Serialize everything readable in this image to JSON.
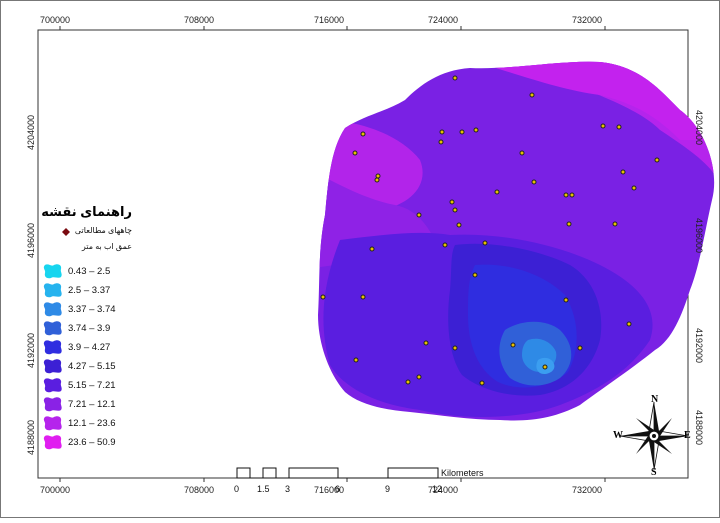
{
  "x_ticks": [
    "700000",
    "708000",
    "716000",
    "724000",
    "732000"
  ],
  "y_ticks": [
    "4204000",
    "4196000",
    "4192000",
    "4188000"
  ],
  "legend": {
    "title": "راهنمای نقشه",
    "wells_label": "چاههای مطالعاتی",
    "depth_label": "عمق اب به متر",
    "classes": [
      {
        "range": "0.43 – 2.5",
        "color": "#17d5ef"
      },
      {
        "range": "2.5 – 3.37",
        "color": "#26b3ee"
      },
      {
        "range": "3.37 – 3.74",
        "color": "#2e8ae6"
      },
      {
        "range": "3.74 – 3.9",
        "color": "#3060d8"
      },
      {
        "range": "3.9 – 4.27",
        "color": "#2f2de0"
      },
      {
        "range": "4.27 – 5.15",
        "color": "#3c20d4"
      },
      {
        "range": "5.15 – 7.21",
        "color": "#5a1ee0"
      },
      {
        "range": "7.21 – 12.1",
        "color": "#8a22e6"
      },
      {
        "range": "12.1 – 23.6",
        "color": "#b524ec"
      },
      {
        "range": "23.6 – 50.9",
        "color": "#e01ef0"
      }
    ]
  },
  "scale": {
    "labels": [
      "0",
      "1.5",
      "3",
      "6",
      "9",
      "12"
    ],
    "unit": "Kilometers"
  },
  "compass": {
    "n": "N",
    "s": "S",
    "e": "E",
    "w": "W"
  }
}
